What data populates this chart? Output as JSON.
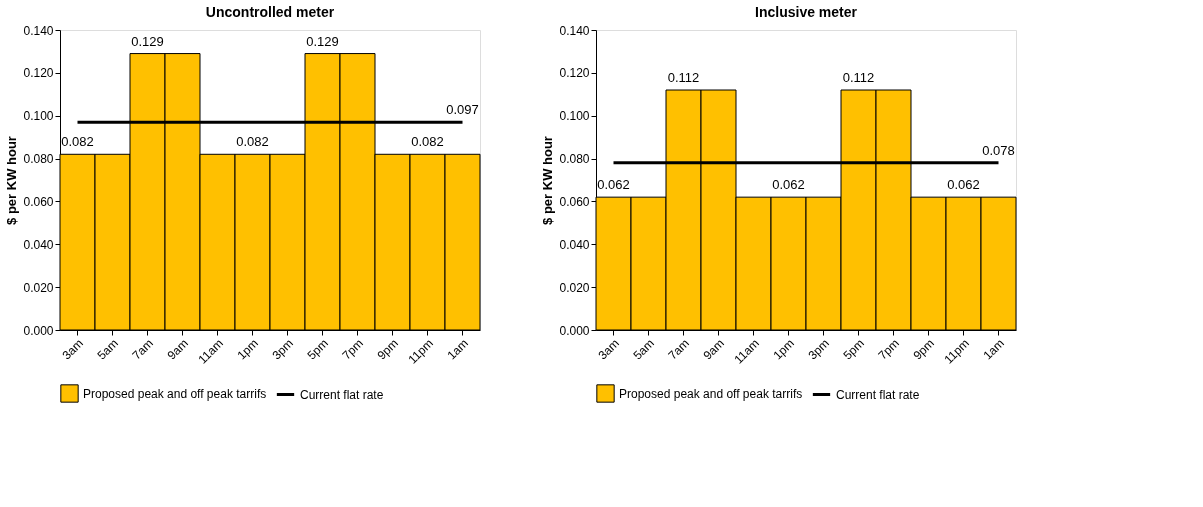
{
  "chart_data": [
    {
      "type": "bar",
      "title": "Uncontrolled meter",
      "ylabel": "$ per KW hour",
      "categories": [
        "3am",
        "5am",
        "7am",
        "9am",
        "11am",
        "1pm",
        "3pm",
        "5pm",
        "7pm",
        "9pm",
        "11pm",
        "1am"
      ],
      "series": [
        {
          "name": "Current flat rate",
          "type": "line",
          "color": "#000000",
          "values": [
            0.097,
            0.097,
            0.097,
            0.097,
            0.097,
            0.097,
            0.097,
            0.097,
            0.097,
            0.097,
            0.097,
            0.097
          ],
          "value_labels": [
            null,
            null,
            null,
            null,
            null,
            null,
            null,
            null,
            null,
            null,
            null,
            "0.097"
          ]
        },
        {
          "name": "Proposed peak and off peak tarrifs",
          "color": "#ffc000",
          "values": [
            0.082,
            0.082,
            0.129,
            0.129,
            0.082,
            0.082,
            0.082,
            0.129,
            0.129,
            0.082,
            0.082,
            0.082
          ],
          "value_labels": [
            "0.082",
            null,
            "0.129",
            null,
            null,
            "0.082",
            null,
            "0.129",
            null,
            null,
            "0.082",
            null
          ]
        }
      ],
      "ylim": [
        0,
        0.14
      ],
      "yticks": [
        {
          "value": 0,
          "label": "0.000"
        },
        {
          "value": 0.02,
          "label": "0.020"
        },
        {
          "value": 0.04,
          "label": "0.040"
        },
        {
          "value": 0.06,
          "label": "0.060"
        },
        {
          "value": 0.08,
          "label": "0.080"
        },
        {
          "value": 0.1,
          "label": "0.100"
        },
        {
          "value": 0.12,
          "label": "0.120"
        },
        {
          "value": 0.14,
          "label": "0.140"
        }
      ],
      "grid": false,
      "legend": "bottom"
    },
    {
      "type": "bar",
      "title": "Inclusive meter",
      "ylabel": "$ per KW hour",
      "categories": [
        "3am",
        "5am",
        "7am",
        "9am",
        "11am",
        "1pm",
        "3pm",
        "5pm",
        "7pm",
        "9pm",
        "11pm",
        "1am"
      ],
      "series": [
        {
          "name": "Current flat rate",
          "type": "line",
          "color": "#000000",
          "values": [
            0.078,
            0.078,
            0.078,
            0.078,
            0.078,
            0.078,
            0.078,
            0.078,
            0.078,
            0.078,
            0.078,
            0.078
          ],
          "value_labels": [
            null,
            null,
            null,
            null,
            null,
            null,
            null,
            null,
            null,
            null,
            null,
            "0.078"
          ]
        },
        {
          "name": "Proposed peak and off peak tarrifs",
          "color": "#ffc000",
          "values": [
            0.062,
            0.062,
            0.112,
            0.112,
            0.062,
            0.062,
            0.062,
            0.112,
            0.112,
            0.062,
            0.062,
            0.062
          ],
          "value_labels": [
            "0.062",
            null,
            "0.112",
            null,
            null,
            "0.062",
            null,
            "0.112",
            null,
            null,
            "0.062",
            null
          ]
        }
      ],
      "ylim": [
        0,
        0.14
      ],
      "yticks": [
        {
          "value": 0,
          "label": "0.000"
        },
        {
          "value": 0.02,
          "label": "0.020"
        },
        {
          "value": 0.04,
          "label": "0.040"
        },
        {
          "value": 0.06,
          "label": "0.060"
        },
        {
          "value": 0.08,
          "label": "0.080"
        },
        {
          "value": 0.1,
          "label": "0.100"
        },
        {
          "value": 0.12,
          "label": "0.120"
        },
        {
          "value": 0.14,
          "label": "0.140"
        }
      ],
      "grid": false,
      "legend": "bottom"
    }
  ]
}
